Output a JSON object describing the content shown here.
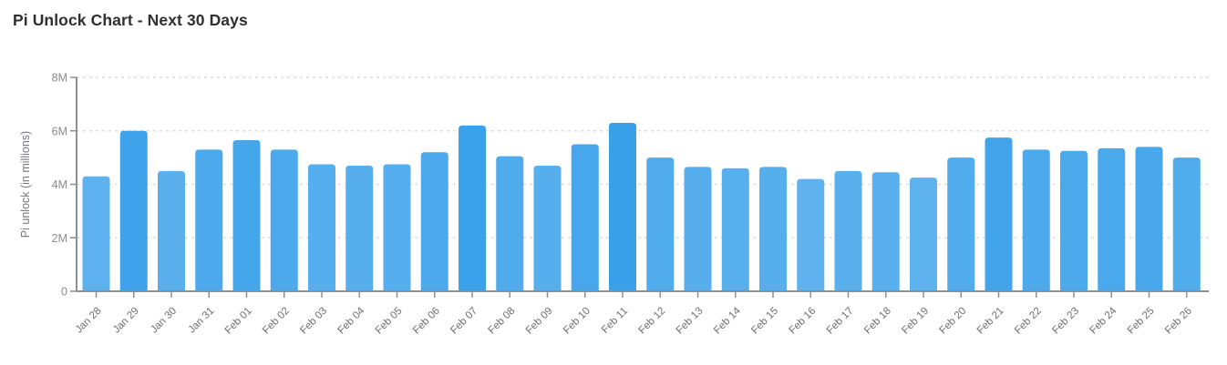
{
  "page": {
    "title": "Pi Unlock Chart - Next 30 Days"
  },
  "chart_data": {
    "type": "bar",
    "title": "Pi Unlock Chart - Next 30 Days",
    "xlabel": "",
    "ylabel": "Pi unlock (in millions)",
    "unit": "millions",
    "ylim": [
      0,
      8
    ],
    "y_ticks": [
      {
        "value": 0,
        "label": "0"
      },
      {
        "value": 2,
        "label": "2M"
      },
      {
        "value": 4,
        "label": "4M"
      },
      {
        "value": 6,
        "label": "6M"
      },
      {
        "value": 8,
        "label": "8M"
      }
    ],
    "grid": "horizontal-dashed",
    "legend_position": "none",
    "categories": [
      "Jan 28",
      "Jan 29",
      "Jan 30",
      "Jan 31",
      "Feb 01",
      "Feb 02",
      "Feb 03",
      "Feb 04",
      "Feb 05",
      "Feb 06",
      "Feb 07",
      "Feb 08",
      "Feb 09",
      "Feb 10",
      "Feb 11",
      "Feb 12",
      "Feb 13",
      "Feb 14",
      "Feb 15",
      "Feb 16",
      "Feb 17",
      "Feb 18",
      "Feb 19",
      "Feb 20",
      "Feb 21",
      "Feb 22",
      "Feb 23",
      "Feb 24",
      "Feb 25",
      "Feb 26"
    ],
    "values": [
      4.3,
      6.0,
      4.5,
      5.3,
      5.65,
      5.3,
      4.75,
      4.7,
      4.75,
      5.2,
      6.2,
      5.05,
      4.7,
      5.5,
      6.3,
      5.0,
      4.65,
      4.6,
      4.65,
      4.2,
      4.5,
      4.45,
      4.25,
      5.0,
      5.75,
      5.3,
      5.25,
      5.35,
      5.4,
      5.0
    ],
    "color_scale": {
      "mode": "value-mapped",
      "min_value": 4.2,
      "max_value": 6.3,
      "low_color": "#5fb2ee",
      "high_color": "#38a1ea"
    }
  },
  "colors": {
    "background": "#ffffff",
    "title_text": "#2f2f31",
    "axis_line": "#8f8f8f",
    "grid_line": "#dcdcdc",
    "y_tick_label": "#8b8b93",
    "x_tick_label": "#6e6e6e",
    "axis_title": "#76767e"
  }
}
